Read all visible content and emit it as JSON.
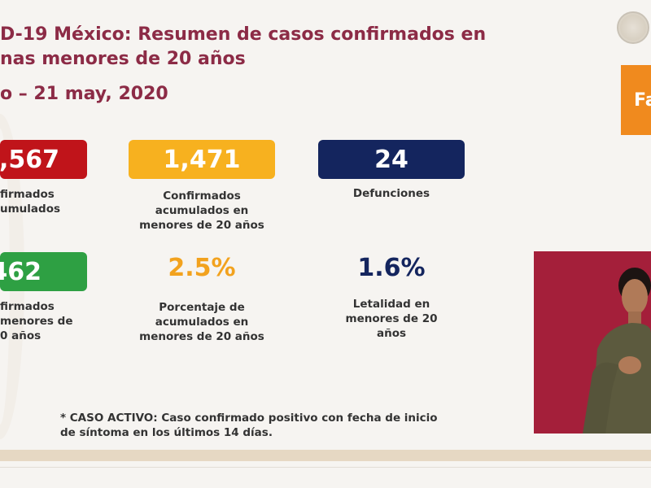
{
  "header": {
    "title": "D-19 México: Resumen de casos confirmados en\nnas menores de 20 años",
    "date": "o – 21 may, 2020",
    "orange_box_text": "Fa"
  },
  "colors": {
    "title": "#8c2b46",
    "red": "#c0141a",
    "yellow": "#f7b11f",
    "navy": "#14255e",
    "green": "#2ea043",
    "orange_text": "#f2a21e"
  },
  "stats": {
    "confirmed_total": {
      "value": ",567",
      "label": "firmados\numulados"
    },
    "confirmed_under20": {
      "value": "1,471",
      "label": "Confirmados\nacumulados en\nmenores de 20 años"
    },
    "deaths": {
      "value": "24",
      "label": "Defunciones"
    },
    "active_under20": {
      "value": "462",
      "label": "firmados\nmenores de\n0 años"
    },
    "percentage": {
      "value": "2.5%",
      "label": "Porcentaje de\nacumulados en\nmenores de 20 años"
    },
    "lethality": {
      "value": "1.6%",
      "label": "Letalidad en\nmenores de 20\naños"
    }
  },
  "footnote": "* CASO ACTIVO: Caso confirmado positivo con fecha de inicio\nde síntoma en los últimos 14 días."
}
